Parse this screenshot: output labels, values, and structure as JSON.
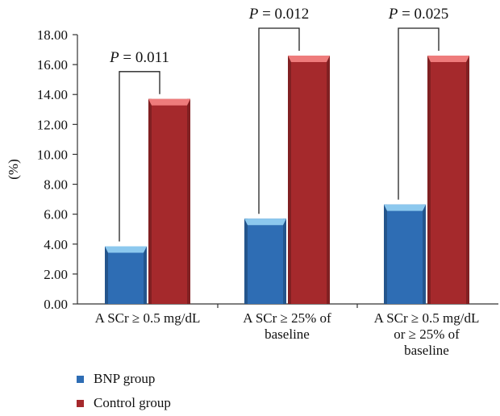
{
  "chart_data": {
    "type": "bar",
    "ylabel": "(%)",
    "ylim": [
      0,
      18
    ],
    "yticks": [
      "0.00",
      "2.00",
      "4.00",
      "6.00",
      "8.00",
      "10.00",
      "12.00",
      "14.00",
      "16.00",
      "18.00"
    ],
    "categories": [
      [
        "A SCr ≥ 0.5 mg/dL"
      ],
      [
        "A SCr ≥ 25% of",
        "baseline"
      ],
      [
        "A SCr ≥ 0.5 mg/dL",
        "or ≥ 25% of",
        "baseline"
      ]
    ],
    "series": [
      {
        "name": "BNP group",
        "values": [
          3.85,
          5.7,
          6.65
        ],
        "color": "#2E6DB4",
        "top_color": "#8CC8EE"
      },
      {
        "name": "Control group",
        "values": [
          13.7,
          16.6,
          16.6
        ],
        "color": "#A5292C",
        "top_color": "#EE7B7B"
      }
    ],
    "annotations": [
      {
        "category_index": 0,
        "text_prefix": "P",
        "text_suffix": " = 0.011"
      },
      {
        "category_index": 1,
        "text_prefix": "P",
        "text_suffix": " = 0.012"
      },
      {
        "category_index": 2,
        "text_prefix": "P",
        "text_suffix": " = 0.025"
      }
    ],
    "grid": false,
    "legend_position": "bottom-left"
  }
}
